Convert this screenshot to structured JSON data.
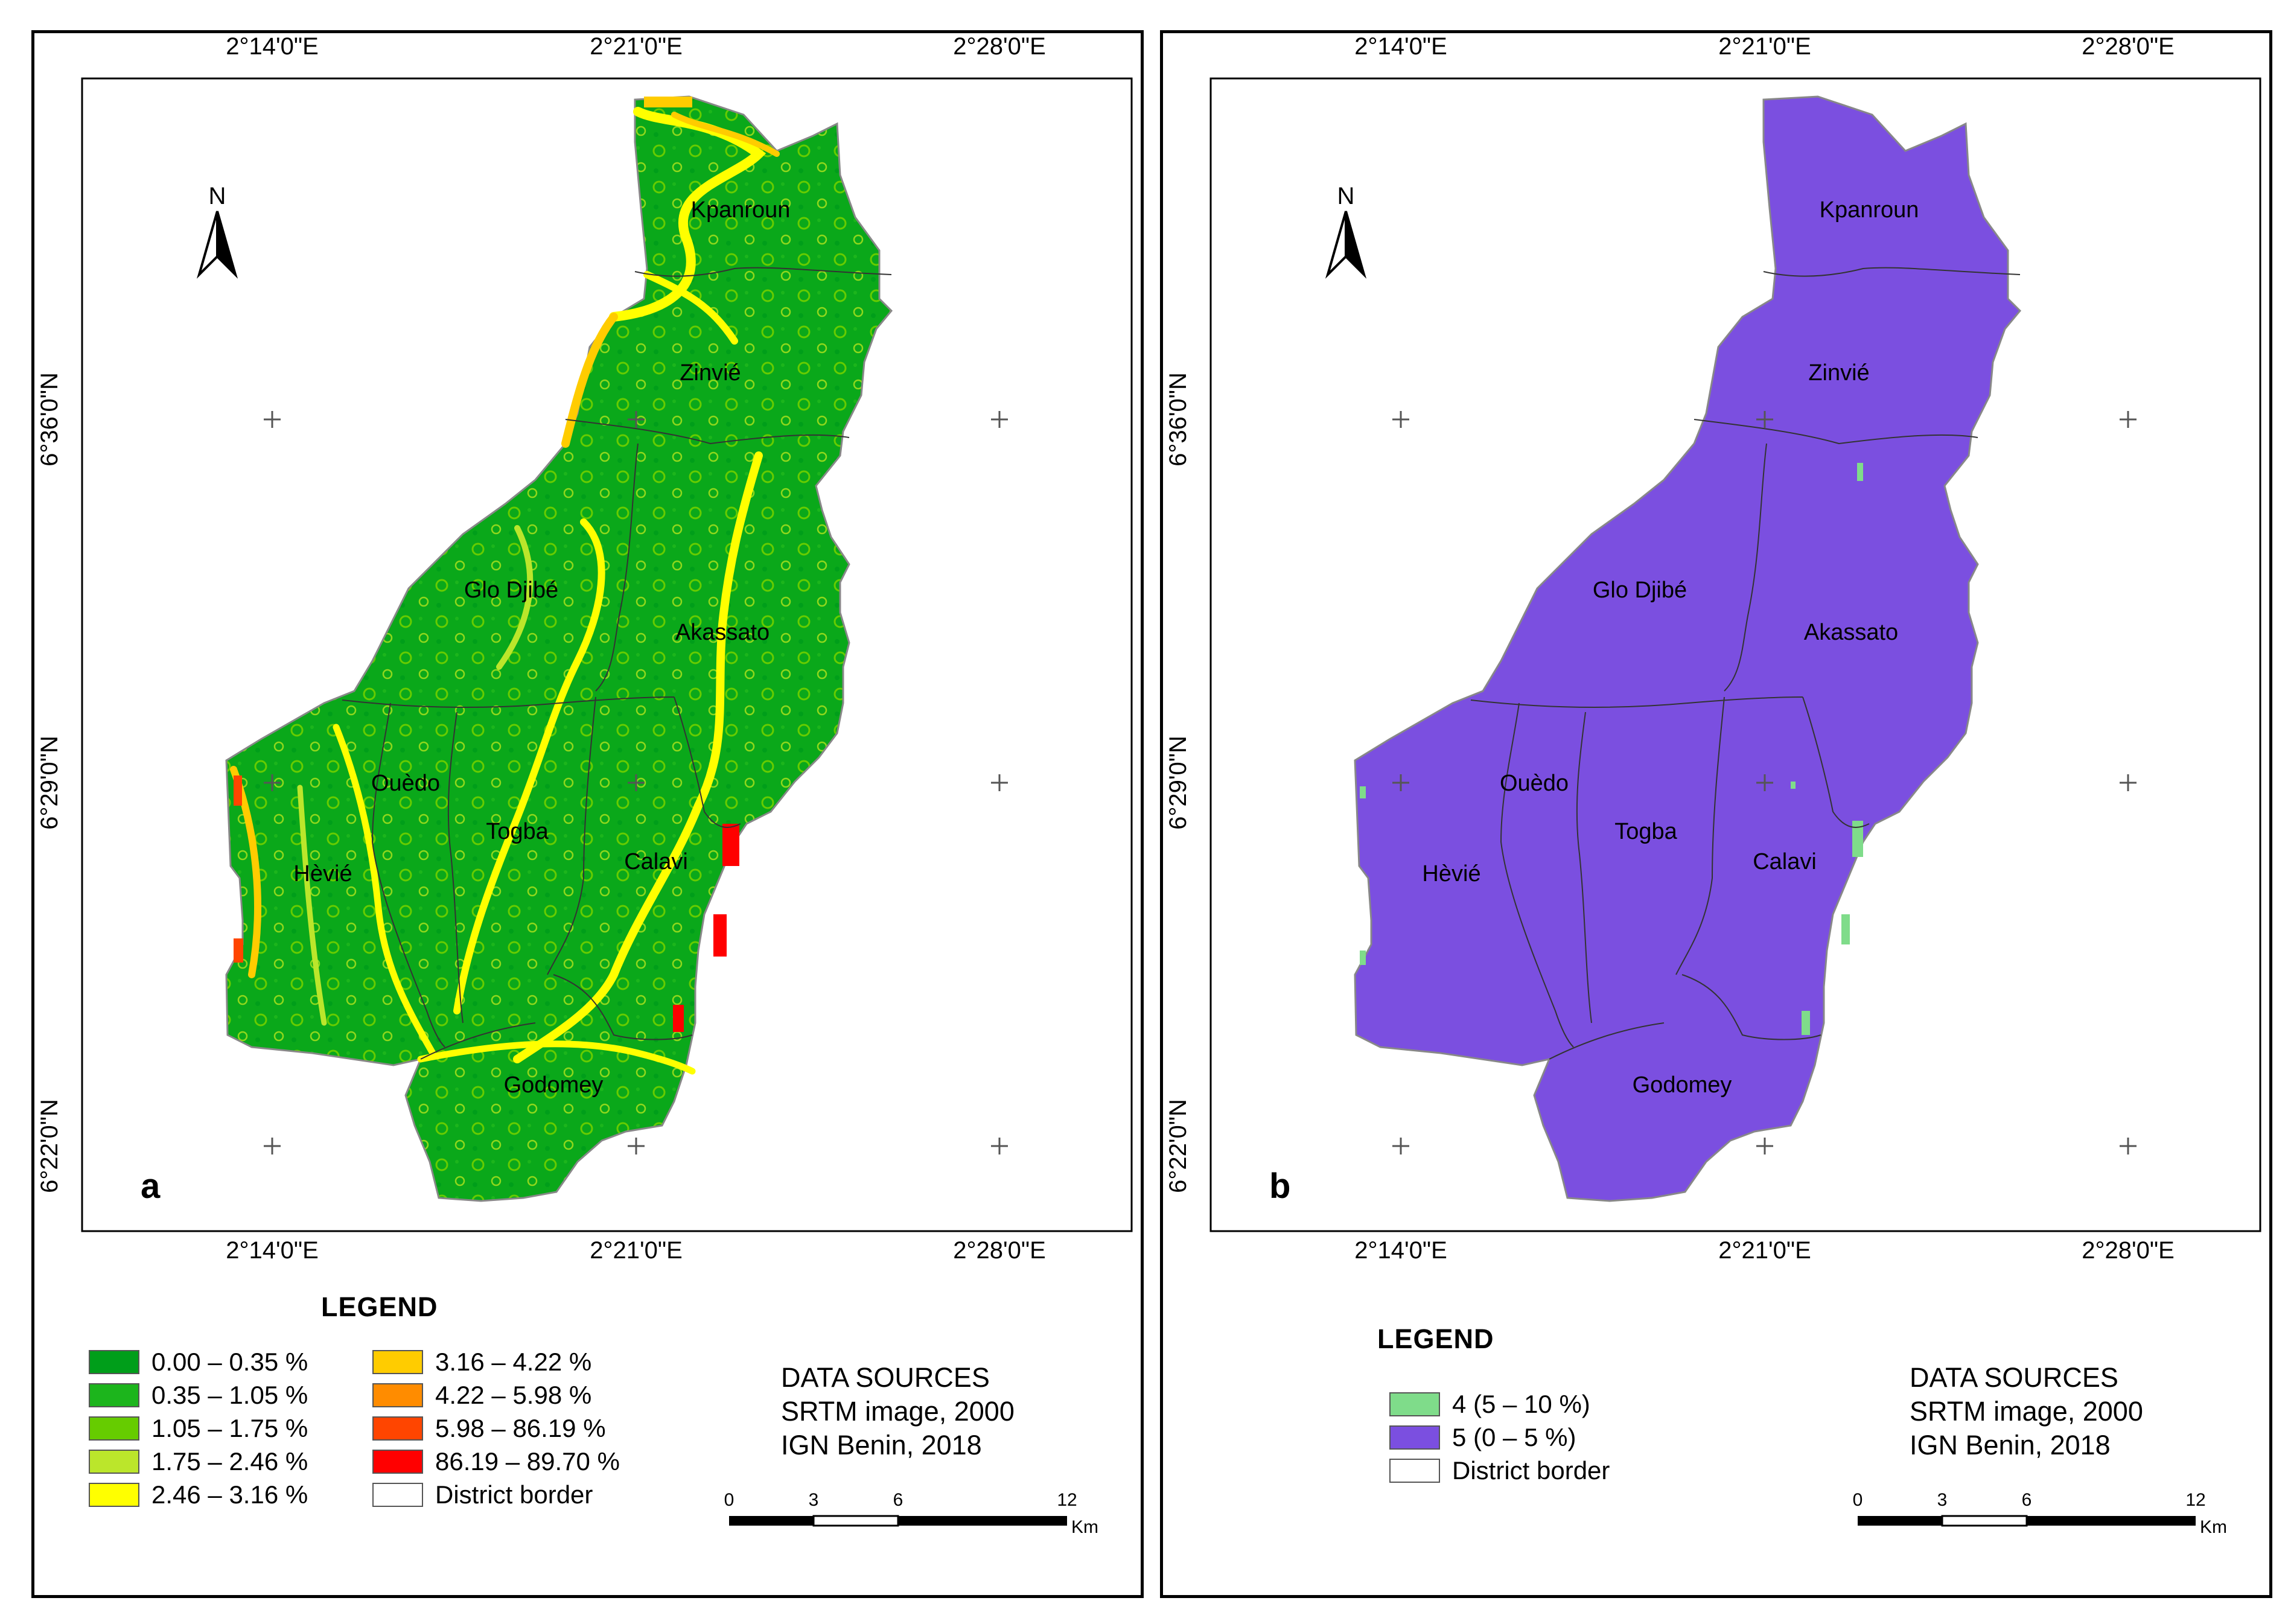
{
  "coords": {
    "lon_labels": [
      "2°14'0\"E",
      "2°21'0\"E",
      "2°28'0\"E"
    ],
    "lat_labels": [
      "6°36'0\"N",
      "6°29'0\"N",
      "6°22'0\"N"
    ]
  },
  "districts": [
    "Kpanroun",
    "Zinvié",
    "Glo Djibé",
    "Akassato",
    "Ouèdo",
    "Togba",
    "Calavi",
    "Hèvié",
    "Godomey"
  ],
  "north_label": "N",
  "panel_a": {
    "letter": "a",
    "legend_title": "LEGEND",
    "legend": [
      {
        "label": "0.00 – 0.35 %",
        "color": "#009e1a"
      },
      {
        "label": "0.35 – 1.05 %",
        "color": "#1cb51c"
      },
      {
        "label": "1.05 – 1.75 %",
        "color": "#66cc00"
      },
      {
        "label": "1.75 – 2.46 %",
        "color": "#bbe62b"
      },
      {
        "label": "2.46 – 3.16 %",
        "color": "#ffff00"
      },
      {
        "label": "3.16 – 4.22 %",
        "color": "#ffcc00"
      },
      {
        "label": "4.22 – 5.98 %",
        "color": "#ff8c00"
      },
      {
        "label": "5.98 – 86.19 %",
        "color": "#ff4500"
      },
      {
        "label": "86.19 – 89.70 %",
        "color": "#ff0000"
      },
      {
        "label": "District border",
        "color": "#ffffff"
      }
    ]
  },
  "panel_b": {
    "letter": "b",
    "legend_title": "LEGEND",
    "legend": [
      {
        "label": "4 (5 – 10 %)",
        "color": "#7fdc8a"
      },
      {
        "label": "5 (0 – 5 %)",
        "color": "#7b4fe0"
      },
      {
        "label": "District border",
        "color": "#ffffff"
      }
    ]
  },
  "sources": {
    "title": "DATA SOURCES",
    "line1": "SRTM image, 2000",
    "line2": "IGN Benin, 2018"
  },
  "scale": {
    "ticks": [
      "0",
      "3",
      "6",
      "12"
    ],
    "unit": "Km"
  }
}
